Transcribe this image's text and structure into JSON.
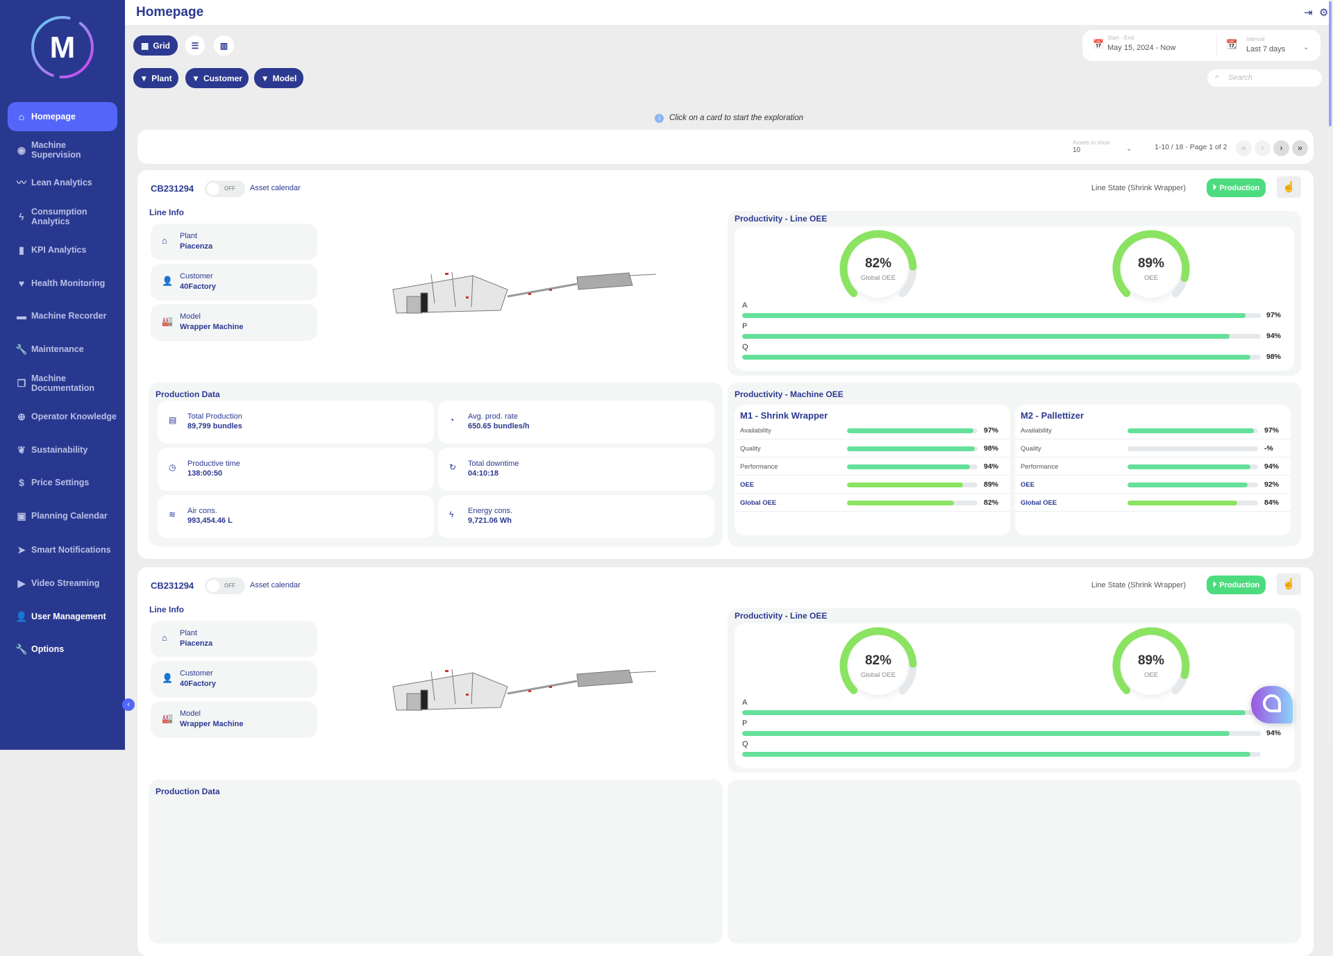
{
  "header": {
    "title": "Homepage"
  },
  "logo": {
    "letter": "M"
  },
  "sidebar": {
    "items": [
      {
        "label": "Homepage",
        "icon": "home-icon",
        "glyph": "⌂"
      },
      {
        "label": "Machine Supervision",
        "icon": "eye-icon",
        "glyph": "◉"
      },
      {
        "label": "Lean Analytics",
        "icon": "trend-line-icon",
        "glyph": "〰"
      },
      {
        "label": "Consumption Analytics",
        "icon": "flash-icon",
        "glyph": "ϟ"
      },
      {
        "label": "KPI Analytics",
        "icon": "bar-chart-icon",
        "glyph": "▮"
      },
      {
        "label": "Health Monitoring",
        "icon": "heart-pulse-icon",
        "glyph": "♥"
      },
      {
        "label": "Machine Recorder",
        "icon": "recorder-icon",
        "glyph": "▬"
      },
      {
        "label": "Maintenance",
        "icon": "wrench-icon",
        "glyph": "🔧"
      },
      {
        "label": "Machine Documentation",
        "icon": "documents-icon",
        "glyph": "❐"
      },
      {
        "label": "Operator Knowledge",
        "icon": "knowledge-icon",
        "glyph": "⊕"
      },
      {
        "label": "Sustainability",
        "icon": "leaf-icon",
        "glyph": "❦"
      },
      {
        "label": "Price Settings",
        "icon": "dollar-icon",
        "glyph": "$"
      },
      {
        "label": "Planning Calendar",
        "icon": "calendar-icon",
        "glyph": "▣"
      },
      {
        "label": "Smart Notifications",
        "icon": "send-icon",
        "glyph": "➤"
      },
      {
        "label": "Video Streaming",
        "icon": "play-icon",
        "glyph": "▶"
      },
      {
        "label": "User Management",
        "icon": "user-icon",
        "glyph": "👤"
      },
      {
        "label": "Options",
        "icon": "wrench-icon",
        "glyph": "🔧"
      }
    ]
  },
  "toolbar": {
    "grid_label": "Grid",
    "filters": [
      "Plant",
      "Customer",
      "Model"
    ]
  },
  "date": {
    "range_label": "Start - End",
    "range_value": "May 15, 2024 - Now",
    "interval_label": "Interval",
    "interval_value": "Last 7 days"
  },
  "search": {
    "placeholder": "Search"
  },
  "hint": "Click on a card to start the exploration",
  "pager": {
    "assets_label": "Assets to show",
    "assets_value": "10",
    "summary": "1-10 / 18 - Page 1 of 2"
  },
  "colors": {
    "navy": "#2b3990",
    "accent": "#5466f9",
    "green": "#64e09a",
    "lime": "#8be362",
    "production": "#4cdc7f"
  },
  "cards": [
    {
      "id": "CB231294",
      "toggle": "OFF",
      "calendar_label": "Asset calendar",
      "line_state_label": "Line State (Shrink Wrapper)",
      "state": "Production",
      "line_info_title": "Line Info",
      "line_info": [
        {
          "label": "Plant",
          "value": "Piacenza"
        },
        {
          "label": "Customer",
          "value": "40Factory"
        },
        {
          "label": "Model",
          "value": "Wrapper Machine"
        }
      ],
      "production_title": "Production Data",
      "production": [
        {
          "label": "Total Production",
          "value": "89,799 bundles"
        },
        {
          "label": "Avg. prod. rate",
          "value": "650.65 bundles/h"
        },
        {
          "label": "Productive time",
          "value": "138:00:50"
        },
        {
          "label": "Total downtime",
          "value": "04:10:18"
        },
        {
          "label": "Air cons.",
          "value": "993,454.46 L"
        },
        {
          "label": "Energy cons.",
          "value": "9,721.06 Wh"
        }
      ],
      "line_oee_title": "Productivity - Line OEE",
      "gauges": [
        {
          "value": 82,
          "text": "82%",
          "label": "Global OEE"
        },
        {
          "value": 89,
          "text": "89%",
          "label": "OEE"
        }
      ],
      "apq": [
        {
          "label": "A",
          "value": 97,
          "text": "97%"
        },
        {
          "label": "P",
          "value": 94,
          "text": "94%"
        },
        {
          "label": "Q",
          "value": 98,
          "text": "98%"
        }
      ],
      "machine_oee_title": "Productivity - Machine OEE",
      "machines": [
        {
          "name": "M1 - Shrink Wrapper",
          "rows": [
            {
              "label": "Availability",
              "value": 97,
              "text": "97%",
              "bold": false,
              "color": "green"
            },
            {
              "label": "Quality",
              "value": 98,
              "text": "98%",
              "bold": false,
              "color": "green"
            },
            {
              "label": "Performance",
              "value": 94,
              "text": "94%",
              "bold": false,
              "color": "green"
            },
            {
              "label": "OEE",
              "value": 89,
              "text": "89%",
              "bold": true,
              "color": "lime"
            },
            {
              "label": "Global OEE",
              "value": 82,
              "text": "82%",
              "bold": true,
              "color": "lime"
            }
          ]
        },
        {
          "name": "M2 - Pallettizer",
          "rows": [
            {
              "label": "Availability",
              "value": 97,
              "text": "97%",
              "bold": false,
              "color": "green"
            },
            {
              "label": "Quality",
              "value": 0,
              "text": "-%",
              "bold": false,
              "color": "green"
            },
            {
              "label": "Performance",
              "value": 94,
              "text": "94%",
              "bold": false,
              "color": "green"
            },
            {
              "label": "OEE",
              "value": 92,
              "text": "92%",
              "bold": true,
              "color": "green"
            },
            {
              "label": "Global OEE",
              "value": 84,
              "text": "84%",
              "bold": true,
              "color": "lime"
            }
          ]
        }
      ]
    },
    {
      "id": "CB231294",
      "toggle": "OFF",
      "calendar_label": "Asset calendar",
      "line_state_label": "Line State (Shrink Wrapper)",
      "state": "Production",
      "line_info_title": "Line Info",
      "line_info": [
        {
          "label": "Plant",
          "value": "Piacenza"
        },
        {
          "label": "Customer",
          "value": "40Factory"
        },
        {
          "label": "Model",
          "value": "Wrapper Machine"
        }
      ],
      "production_title": "Production Data",
      "production": [],
      "line_oee_title": "Productivity - Line OEE",
      "gauges": [
        {
          "value": 82,
          "text": "82%",
          "label": "Global OEE"
        },
        {
          "value": 89,
          "text": "89%",
          "label": "OEE"
        }
      ],
      "apq": [
        {
          "label": "A",
          "value": 97,
          "text": ""
        },
        {
          "label": "P",
          "value": 94,
          "text": "94%"
        },
        {
          "label": "Q",
          "value": 98,
          "text": ""
        }
      ],
      "machine_oee_title": "",
      "machines": []
    }
  ]
}
